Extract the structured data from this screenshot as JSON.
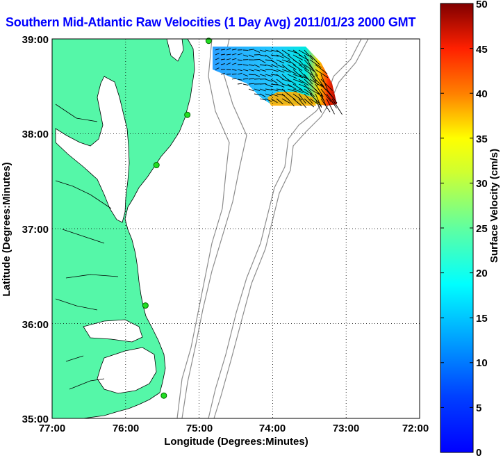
{
  "title": "Southern Mid-Atlantic Raw Velocities (1 Day Avg) 2011/01/23 2000 GMT",
  "map": {
    "xlabel": "Longitude (Degrees:Minutes)",
    "ylabel": "Latitude (Degrees:Minutes)",
    "lon_range": [
      -77,
      -72
    ],
    "lat_range": [
      35,
      39
    ],
    "x_ticks": [
      "77:00",
      "76:00",
      "75:00",
      "74:00",
      "73:00",
      "72:00"
    ],
    "y_ticks": [
      "39:00",
      "38:00",
      "37:00",
      "36:00",
      "35:00"
    ],
    "land_color": "#55f7a8",
    "contour_color": "#8c8c8c",
    "grid": "dotted",
    "stations": [
      {
        "lon": -74.87,
        "lat": 38.98
      },
      {
        "lon": -75.16,
        "lat": 38.2
      },
      {
        "lon": -75.58,
        "lat": 37.67
      },
      {
        "lon": -75.73,
        "lat": 36.19
      },
      {
        "lon": -75.48,
        "lat": 35.24
      }
    ]
  },
  "colorbar": {
    "label": "Surface Velocity (cm/s)",
    "min": 0,
    "max": 50,
    "ticks": [
      "0",
      "5",
      "10",
      "15",
      "20",
      "25",
      "30",
      "35",
      "40",
      "45",
      "50"
    ],
    "colormap": "jet"
  }
}
